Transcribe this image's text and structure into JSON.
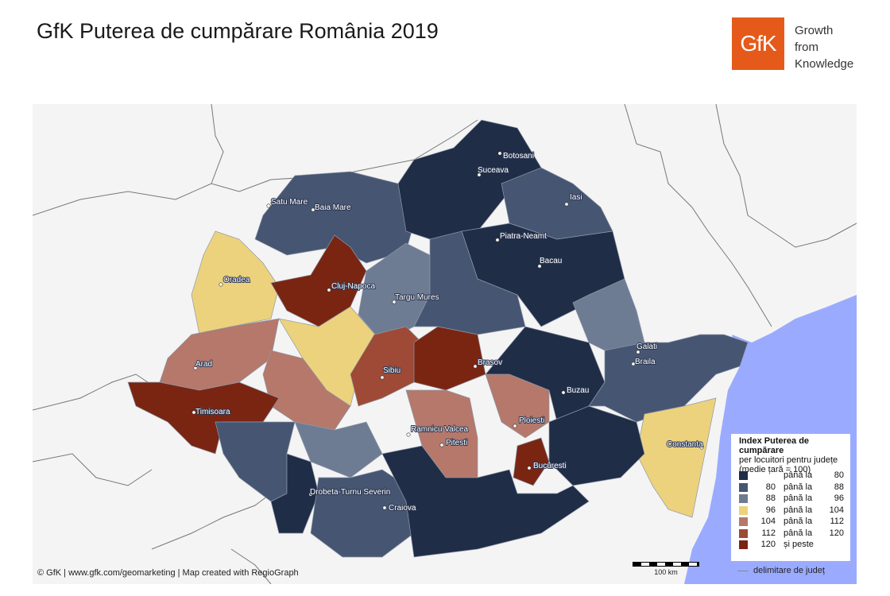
{
  "title": "GfK Puterea de cumpărare România 2019",
  "logo": {
    "text": "GfK",
    "color": "#e55a1b"
  },
  "tagline": [
    "Growth",
    "from",
    "Knowledge"
  ],
  "colors": {
    "c1": "#1f2d47",
    "c2": "#465672",
    "c3": "#6e7c93",
    "c4": "#ecd27c",
    "c5": "#b5786a",
    "c6": "#9e4a36",
    "c7": "#7a2512",
    "sea": "#9aabff",
    "land": "#f4f4f4"
  },
  "cities": [
    "Botosani",
    "Suceava",
    "Iasi",
    "Satu Mare",
    "Baia Mare",
    "Piatra-Neamt",
    "Bacau",
    "Oradea",
    "Cluj-Napoca",
    "Targu Mures",
    "Galati",
    "Braila",
    "Arad",
    "Sibiu",
    "Brasov",
    "Timisoara",
    "Buzau",
    "Ploiesti",
    "Ramnicu Valcea",
    "Pitesti",
    "Constanta",
    "Bucuresti",
    "Drobeta-Turnu Severin",
    "Craiova"
  ],
  "legend": {
    "title": "Index Puterea de cumpărare",
    "subtitle1": "per locuitori pentru județe",
    "subtitle2": "(medie țară = 100)",
    "rows": [
      {
        "from": "",
        "mid": "până la",
        "to": "80",
        "color": "#1f2d47"
      },
      {
        "from": "80",
        "mid": "până la",
        "to": "88",
        "color": "#465672"
      },
      {
        "from": "88",
        "mid": "până la",
        "to": "96",
        "color": "#6e7c93"
      },
      {
        "from": "96",
        "mid": "până la",
        "to": "104",
        "color": "#ecd27c"
      },
      {
        "from": "104",
        "mid": "până la",
        "to": "112",
        "color": "#b5786a"
      },
      {
        "from": "112",
        "mid": "până la",
        "to": "120",
        "color": "#9e4a36"
      },
      {
        "from": "120",
        "mid": "și peste",
        "to": "",
        "color": "#7a2512"
      }
    ],
    "boundary": "delimitare de județ"
  },
  "scale": "100 km",
  "copyright": "© GfK | www.gfk.com/geomarketing | Map created with RegioGraph"
}
